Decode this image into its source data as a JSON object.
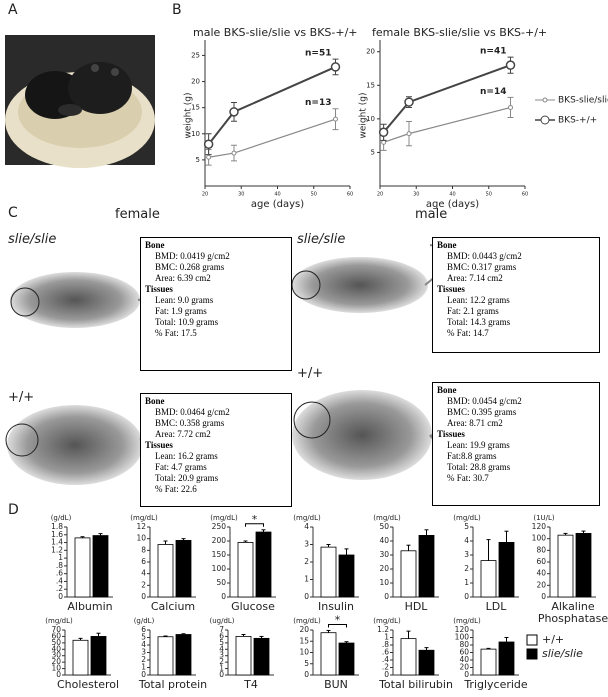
{
  "panels": {
    "A": "A",
    "B": "B",
    "C": "C",
    "D": "D"
  },
  "panel_c": {
    "female": "female",
    "male": "male",
    "rows": [
      "slie/slie",
      "slie/slie",
      "+/+",
      "+/+"
    ],
    "boxes": [
      {
        "bone_title": "Bone",
        "bone": [
          "BMD: 0.0419 g/cm2",
          "BMC: 0.268 grams",
          "Area: 6.39 cm2"
        ],
        "tissue_title": "Tissues",
        "tissues": [
          "Lean: 9.0 grams",
          "Fat: 1.9 grams",
          "Total: 10.9 grams",
          "% Fat: 17.5"
        ]
      },
      {
        "bone_title": "Bone",
        "bone": [
          "BMD: 0.0443 g/cm2",
          "BMC: 0.317 grams",
          "Area: 7.14 cm2"
        ],
        "tissue_title": "Tissues",
        "tissues": [
          "Lean: 12.2 grams",
          "Fat: 2.1 grams",
          "Total: 14.3 grams",
          "% Fat: 14.7"
        ]
      },
      {
        "bone_title": "Bone",
        "bone": [
          "BMD: 0.0464 g/cm2",
          "BMC: 0.358 grams",
          "Area: 7.72 cm2"
        ],
        "tissue_title": "Tissues",
        "tissues": [
          "Lean: 16.2 grams",
          "Fat: 4.7 grams",
          "Total: 20.9 grams",
          "% Fat: 22.6"
        ]
      },
      {
        "bone_title": "Bone",
        "bone": [
          "BMD: 0.0454 g/cm2",
          "BMC: 0.395 grams",
          "Area: 8.71 cm2"
        ],
        "tissue_title": "Tissues",
        "tissues": [
          "Lean: 19.9 grams",
          "Fat:8.8 grams",
          "Total: 28.8 grams",
          "% Fat: 30.7"
        ]
      }
    ]
  },
  "bar_legend": [
    {
      "name": "+/+",
      "color": "#ffffff"
    },
    {
      "name": "slie/slie",
      "color": "#000000"
    }
  ],
  "chart_data": [
    {
      "type": "line",
      "title": "male BKS-slie/slie vs BKS-+/+",
      "xlabel": "age (days)",
      "ylabel": "weight (g)",
      "xlim": [
        20,
        60
      ],
      "xticks": [
        20,
        30,
        40,
        50,
        60
      ],
      "ylim": [
        0,
        27
      ],
      "yticks": [
        5,
        10,
        15,
        20,
        25
      ],
      "series": [
        {
          "name": "BKS-slie/slie",
          "color": "#888888",
          "x": [
            21,
            28,
            56
          ],
          "values": [
            5.5,
            6.3,
            12.8
          ],
          "errors": [
            1.5,
            1.5,
            2
          ],
          "annotation": "n=13"
        },
        {
          "name": "BKS-+/+",
          "color": "#444444",
          "x": [
            21,
            28,
            56
          ],
          "values": [
            8,
            14.2,
            22.8
          ],
          "errors": [
            2,
            1.8,
            1.5
          ],
          "annotation": "n=51"
        }
      ]
    },
    {
      "type": "line",
      "title": "female BKS-slie/slie vs BKS-+/+",
      "xlabel": "age (days)",
      "ylabel": "weight (g)",
      "xlim": [
        20,
        60
      ],
      "xticks": [
        20,
        30,
        40,
        50,
        60
      ],
      "ylim": [
        0,
        21
      ],
      "yticks": [
        5,
        10,
        15,
        20
      ],
      "series": [
        {
          "color": "#888888",
          "x": [
            21,
            28,
            56
          ],
          "values": [
            6.5,
            7.8,
            11.7
          ],
          "errors": [
            1.2,
            1.8,
            1.5
          ],
          "annotation": "n=14"
        },
        {
          "color": "#444444",
          "x": [
            21,
            28,
            56
          ],
          "values": [
            8,
            12.5,
            18
          ],
          "errors": [
            1.2,
            0.8,
            1.2
          ],
          "annotation": "n=41"
        }
      ]
    },
    {
      "type": "bar",
      "title": "Albumin",
      "unit": "(g/dL)",
      "values": [
        1.52,
        1.58
      ],
      "errors": [
        0.03,
        0.05
      ],
      "ylim": [
        0,
        1.8
      ],
      "yticks": [
        0,
        {
          "value": 0.2,
          "label": ".2"
        },
        {
          "value": 0.4,
          "label": ".4"
        },
        {
          "value": 0.6,
          "label": ".6"
        },
        {
          "value": 0.8,
          "label": ".8"
        },
        1,
        1.2,
        1.4,
        1.6,
        1.8
      ]
    },
    {
      "type": "bar",
      "title": "Calcium",
      "unit": "(mg/dL)",
      "values": [
        9.0,
        9.7
      ],
      "errors": [
        0.6,
        0.3
      ],
      "ylim": [
        0,
        12
      ],
      "yticks": [
        0,
        2,
        4,
        6,
        8,
        10,
        12
      ]
    },
    {
      "type": "bar",
      "title": "Glucose",
      "unit": "(mg/dL)",
      "values": [
        195,
        232
      ],
      "errors": [
        5,
        8
      ],
      "ylim": [
        0,
        250
      ],
      "yticks": [
        0,
        50,
        100,
        150,
        200,
        250
      ],
      "annotation": "*"
    },
    {
      "type": "bar",
      "title": "Insulin",
      "unit": "(mg/dL)",
      "values": [
        2.85,
        2.4
      ],
      "errors": [
        0.15,
        0.35
      ],
      "ylim": [
        0,
        4
      ],
      "yticks": [
        0,
        1,
        2,
        3,
        4
      ]
    },
    {
      "type": "bar",
      "title": "HDL",
      "unit": "(mg/dL)",
      "values": [
        33,
        44
      ],
      "errors": [
        4,
        4
      ],
      "ylim": [
        0,
        50
      ],
      "yticks": [
        0,
        10,
        20,
        30,
        40,
        50
      ]
    },
    {
      "type": "bar",
      "title": "LDL",
      "unit": "(mg/dL)",
      "values": [
        2.6,
        3.9
      ],
      "errors": [
        1.5,
        0.8
      ],
      "ylim": [
        0,
        5
      ],
      "yticks": [
        0,
        1,
        2,
        3,
        4,
        5
      ]
    },
    {
      "type": "bar",
      "title": "Alkaline Phosphatase",
      "unit": "(1U/L)",
      "values": [
        106,
        109
      ],
      "errors": [
        3,
        4
      ],
      "ylim": [
        0,
        120
      ],
      "yticks": [
        0,
        20,
        40,
        60,
        80,
        100,
        120
      ]
    },
    {
      "type": "bar",
      "title": "Cholesterol",
      "unit": "(mg/dL)",
      "values": [
        54,
        60
      ],
      "errors": [
        3,
        5
      ],
      "ylim": [
        0,
        70
      ],
      "yticks": [
        0,
        10,
        20,
        30,
        40,
        50,
        60,
        70
      ]
    },
    {
      "type": "bar",
      "title": "Total protein",
      "unit": "(g/dL)",
      "values": [
        5.1,
        5.4
      ],
      "errors": [
        0.1,
        0.1
      ],
      "ylim": [
        0,
        6
      ],
      "yticks": [
        0,
        1,
        2,
        3,
        4,
        5,
        6
      ]
    },
    {
      "type": "bar",
      "title": "T4",
      "unit": "(ug/dL)",
      "values": [
        6.0,
        5.7
      ],
      "errors": [
        0.3,
        0.3
      ],
      "ylim": [
        0,
        7
      ],
      "yticks": [
        0,
        1,
        2,
        3,
        4,
        5,
        6,
        7
      ]
    },
    {
      "type": "bar",
      "title": "BUN",
      "unit": "(mg/dL)",
      "values": [
        18.8,
        14.2
      ],
      "errors": [
        1,
        0.6
      ],
      "ylim": [
        0,
        20
      ],
      "yticks": [
        0,
        5,
        10,
        15,
        20
      ],
      "annotation": "*"
    },
    {
      "type": "bar",
      "title": "Total bilirubin",
      "unit": "(mg/dL)",
      "values": [
        0.97,
        0.66
      ],
      "errors": [
        0.2,
        0.07
      ],
      "ylim": [
        0,
        1.2
      ],
      "yticks": [
        0,
        {
          "value": 0.2,
          "label": ".2"
        },
        {
          "value": 0.4,
          "label": ".4"
        },
        {
          "value": 0.6,
          "label": ".6"
        },
        {
          "value": 0.8,
          "label": ".8"
        },
        1,
        1.2
      ]
    },
    {
      "type": "bar",
      "title": "Triglyceride",
      "unit": "(mg/dL)",
      "values": [
        69,
        88
      ],
      "errors": [
        2,
        12
      ],
      "ylim": [
        0,
        120
      ],
      "yticks": [
        0,
        20,
        40,
        60,
        80,
        100,
        120
      ]
    }
  ]
}
